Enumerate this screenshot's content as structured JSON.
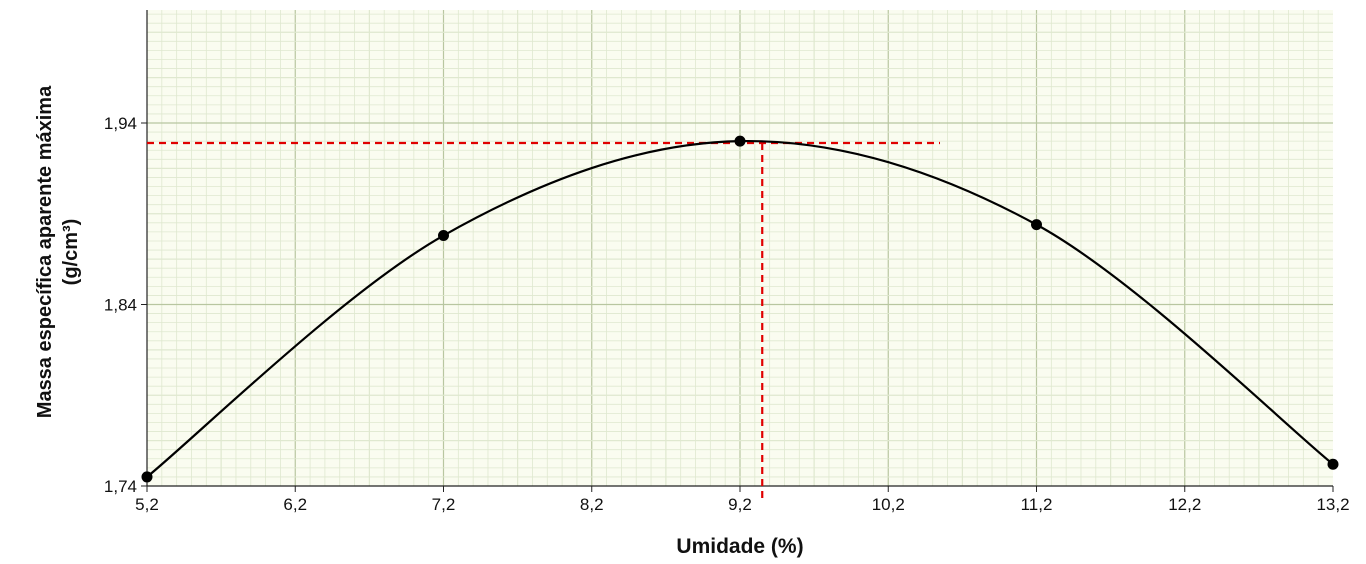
{
  "chart_data": {
    "type": "scatter",
    "xlabel": "Umidade (%)",
    "ylabel_line1": "Massa específica aparente máxima",
    "ylabel_line2": "(g/cm³)",
    "xlim": [
      5.2,
      13.2
    ],
    "ylim": [
      1.74,
      2.0
    ],
    "x_ticks": [
      "5,2",
      "6,2",
      "7,2",
      "8,2",
      "9,2",
      "10,2",
      "11,2",
      "12,2",
      "13,2"
    ],
    "x_tick_values": [
      5.2,
      6.2,
      7.2,
      8.2,
      9.2,
      10.2,
      11.2,
      12.2,
      13.2
    ],
    "y_ticks": [
      "1,74",
      "1,84",
      "1,94"
    ],
    "y_tick_values": [
      1.74,
      1.84,
      1.94
    ],
    "grid": true,
    "series": [
      {
        "points": [
          {
            "x": 5.2,
            "y": 1.745
          },
          {
            "x": 7.2,
            "y": 1.878
          },
          {
            "x": 9.2,
            "y": 1.93
          },
          {
            "x": 11.2,
            "y": 1.884
          },
          {
            "x": 13.2,
            "y": 1.752
          }
        ],
        "color": "#000000"
      }
    ],
    "reference_lines": {
      "optimum_x": 9.35,
      "optimum_y": 1.929,
      "color": "#e00000"
    }
  }
}
